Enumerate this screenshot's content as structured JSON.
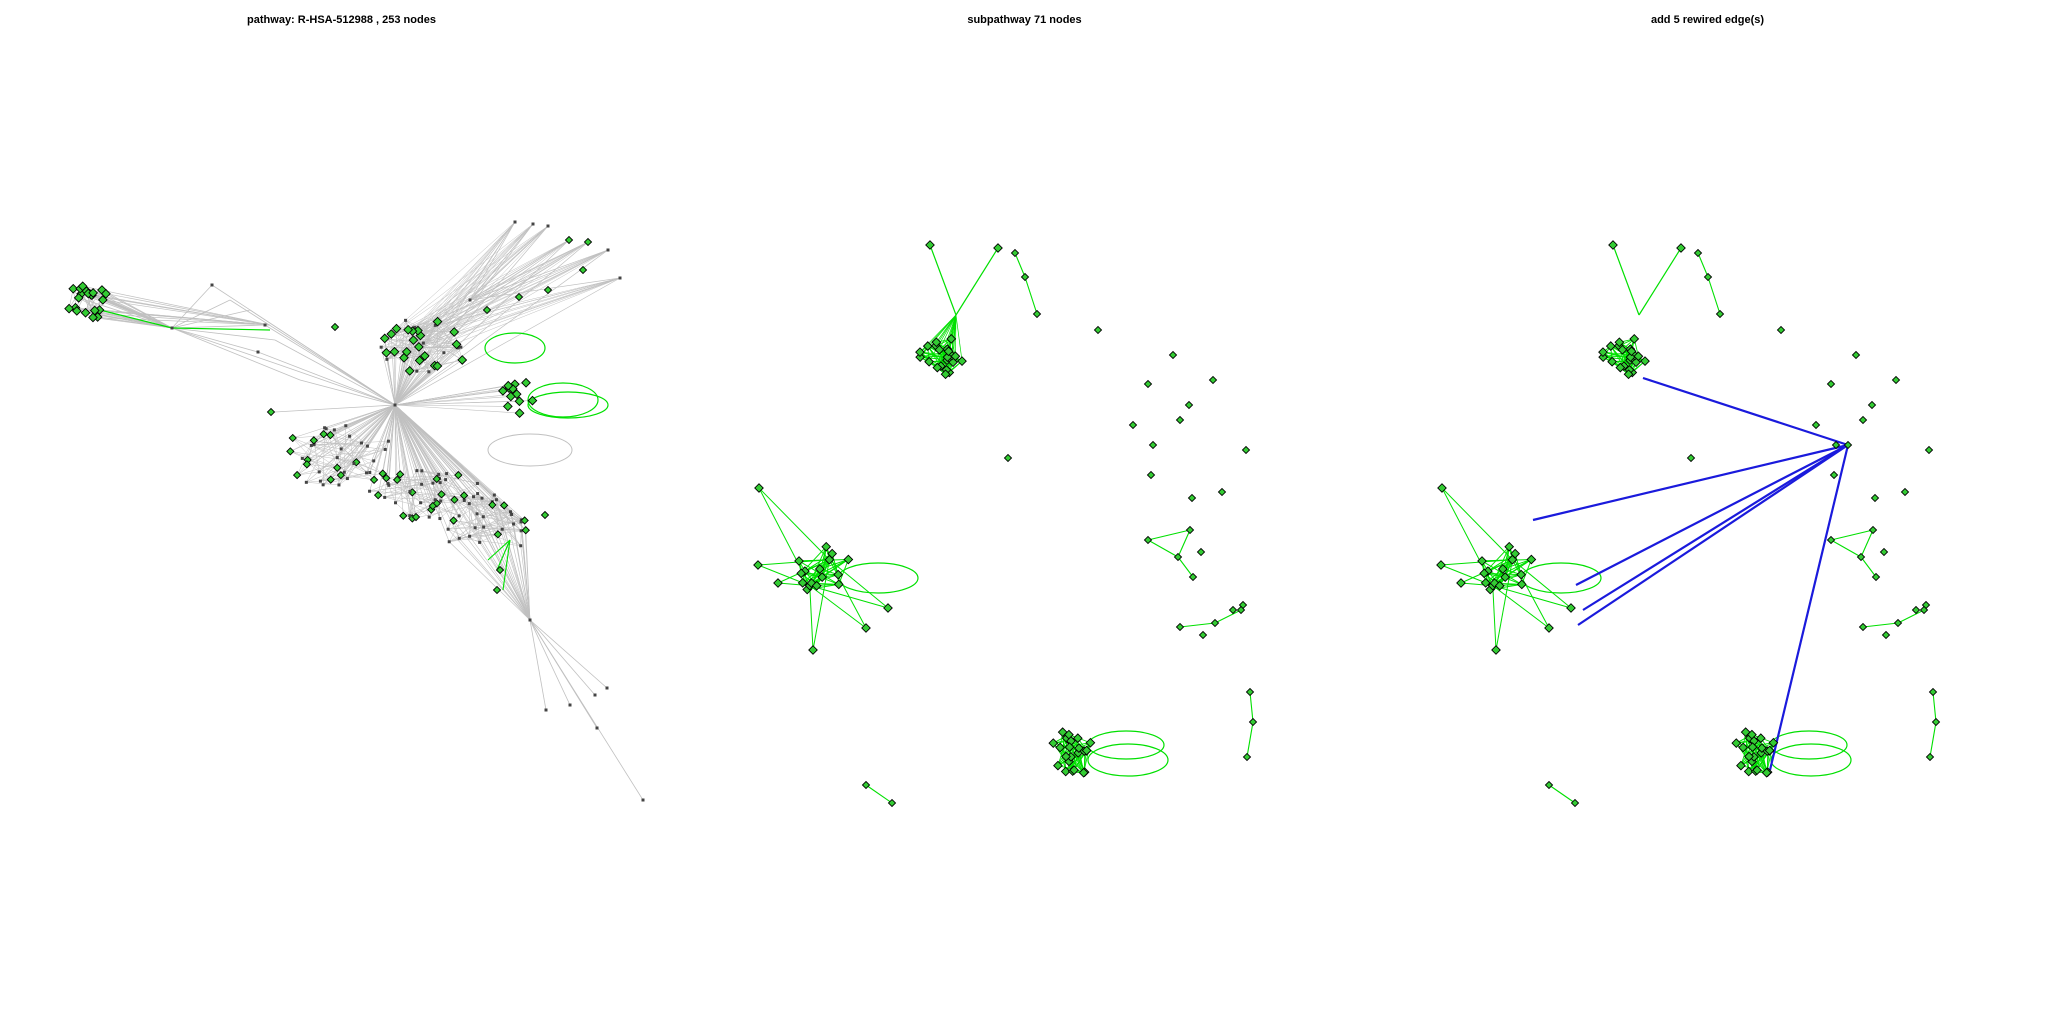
{
  "panels": [
    {
      "title": "pathway: R-HSA-512988 , 253 nodes"
    },
    {
      "title": "subpathway 71 nodes"
    },
    {
      "title": "add 5 rewired edge(s)"
    }
  ],
  "colors": {
    "background": "#ffffff",
    "edge_default": "#c0c0c0",
    "edge_highlight": "#00e000",
    "edge_rewired": "#1a1adc",
    "node_highlight_fill": "#33cc33",
    "node_default_fill": "#444444",
    "node_stroke": "#000000"
  }
}
